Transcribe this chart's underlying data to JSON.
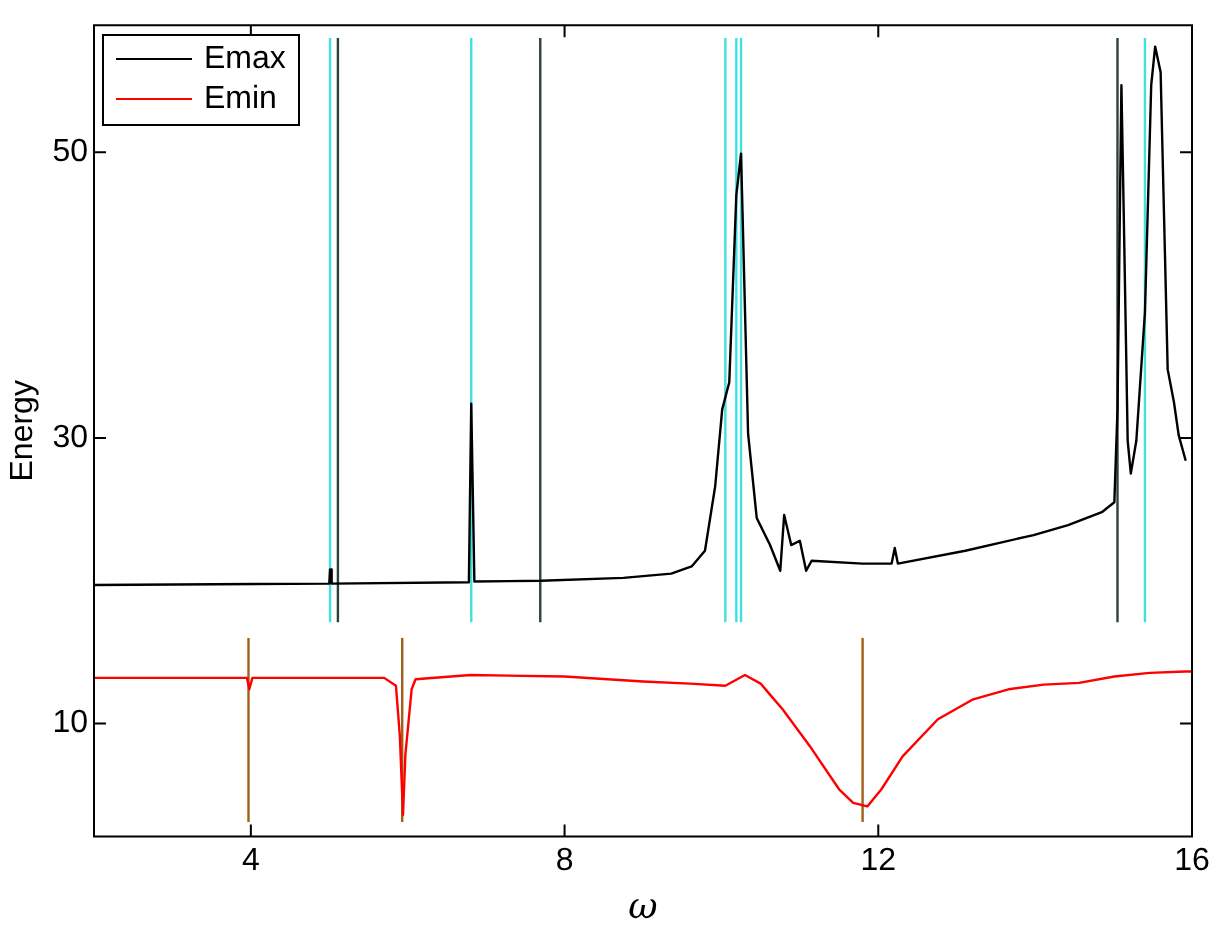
{
  "chart_data": {
    "type": "line",
    "xlabel": "ω",
    "ylabel": "Energy",
    "xlim": [
      2,
      16
    ],
    "xticks": [
      4,
      8,
      12,
      16
    ],
    "ylim": [
      2.1,
      58.9
    ],
    "yticks": [
      10,
      30,
      50
    ],
    "grid": false,
    "legend": "top left",
    "marker": "none",
    "line_style": "solid",
    "series": [
      {
        "name": "Emax",
        "color": "#000000",
        "x": [
          2,
          5.0,
          5.01,
          5.03,
          6.78,
          6.81,
          6.85,
          7.7,
          8.75,
          9.36,
          9.62,
          9.79,
          9.92,
          10.01,
          10.1,
          10.19,
          10.25,
          10.27,
          10.34,
          10.45,
          10.62,
          10.75,
          10.8,
          10.89,
          11.0,
          11.08,
          11.15,
          11.8,
          12.17,
          12.21,
          12.25,
          13.11,
          13.98,
          14.42,
          14.85,
          15.01,
          15.05,
          15.1,
          15.13,
          15.18,
          15.22,
          15.29,
          15.4,
          15.48,
          15.53,
          15.6,
          15.69,
          15.77,
          15.83,
          15.92
        ],
        "values": [
          19.7,
          19.8,
          20.8,
          19.8,
          19.9,
          32.4,
          19.95,
          20.0,
          20.2,
          20.5,
          21.0,
          22.1,
          26.6,
          32.0,
          33.9,
          47.0,
          49.9,
          45.6,
          30.3,
          24.4,
          22.5,
          20.7,
          24.6,
          22.5,
          22.8,
          20.7,
          21.4,
          21.2,
          21.2,
          22.3,
          21.2,
          22.1,
          23.2,
          23.9,
          24.8,
          25.5,
          32.0,
          54.7,
          45.6,
          29.8,
          27.5,
          29.8,
          38.8,
          54.7,
          57.4,
          55.6,
          34.8,
          32.5,
          30.2,
          28.4
        ]
      },
      {
        "name": "Emin",
        "color": "#ff0000",
        "x": [
          2,
          3.95,
          3.98,
          4.02,
          5.7,
          5.85,
          5.9,
          5.94,
          5.97,
          6.05,
          6.1,
          6.8,
          8,
          9,
          9.6,
          10.05,
          10.3,
          10.5,
          10.6,
          10.78,
          11.13,
          11.5,
          11.68,
          11.86,
          12.04,
          12.31,
          12.76,
          13.21,
          13.66,
          14.11,
          14.56,
          15.01,
          15.46,
          15.91,
          16
        ],
        "values": [
          13.2,
          13.2,
          12.4,
          13.2,
          13.2,
          12.65,
          9.1,
          3.6,
          7.8,
          12.4,
          13.1,
          13.4,
          13.3,
          12.95,
          12.8,
          12.65,
          13.4,
          12.8,
          12.15,
          11.0,
          8.4,
          5.4,
          4.45,
          4.2,
          5.4,
          7.7,
          10.3,
          11.7,
          12.4,
          12.73,
          12.85,
          13.3,
          13.55,
          13.65,
          13.65
        ]
      },
      {
        "color": "#40e0e0",
        "x": [
          5.01,
          5.01
        ],
        "values": [
          17.1,
          58.0
        ]
      },
      {
        "color": "#2f3f3f",
        "x": [
          5.11,
          5.11
        ],
        "values": [
          17.1,
          58.0
        ]
      },
      {
        "color": "#40e0e0",
        "x": [
          6.81,
          6.81
        ],
        "values": [
          17.1,
          58.0
        ]
      },
      {
        "color": "#2f3f3f",
        "x": [
          7.69,
          7.69
        ],
        "values": [
          17.1,
          58.0
        ]
      },
      {
        "color": "#40e0e0",
        "x": [
          10.05,
          10.05
        ],
        "values": [
          17.1,
          58.0
        ]
      },
      {
        "color": "#40e0e0",
        "x": [
          10.19,
          10.19
        ],
        "values": [
          17.1,
          58.0
        ]
      },
      {
        "color": "#40e0e0",
        "x": [
          10.25,
          10.25
        ],
        "values": [
          17.1,
          58.0
        ]
      },
      {
        "color": "#2f3f3f",
        "x": [
          15.05,
          15.05
        ],
        "values": [
          17.1,
          58.0
        ]
      },
      {
        "color": "#40e0e0",
        "x": [
          15.4,
          15.4
        ],
        "values": [
          17.1,
          58.0
        ]
      },
      {
        "color": "#a0601a",
        "x": [
          3.97,
          3.97
        ],
        "values": [
          3.1,
          16.0
        ]
      },
      {
        "color": "#a0601a",
        "x": [
          5.93,
          5.93
        ],
        "values": [
          3.1,
          16.0
        ]
      },
      {
        "color": "#a0601a",
        "x": [
          11.8,
          11.8
        ],
        "values": [
          3.1,
          16.0
        ]
      }
    ]
  }
}
